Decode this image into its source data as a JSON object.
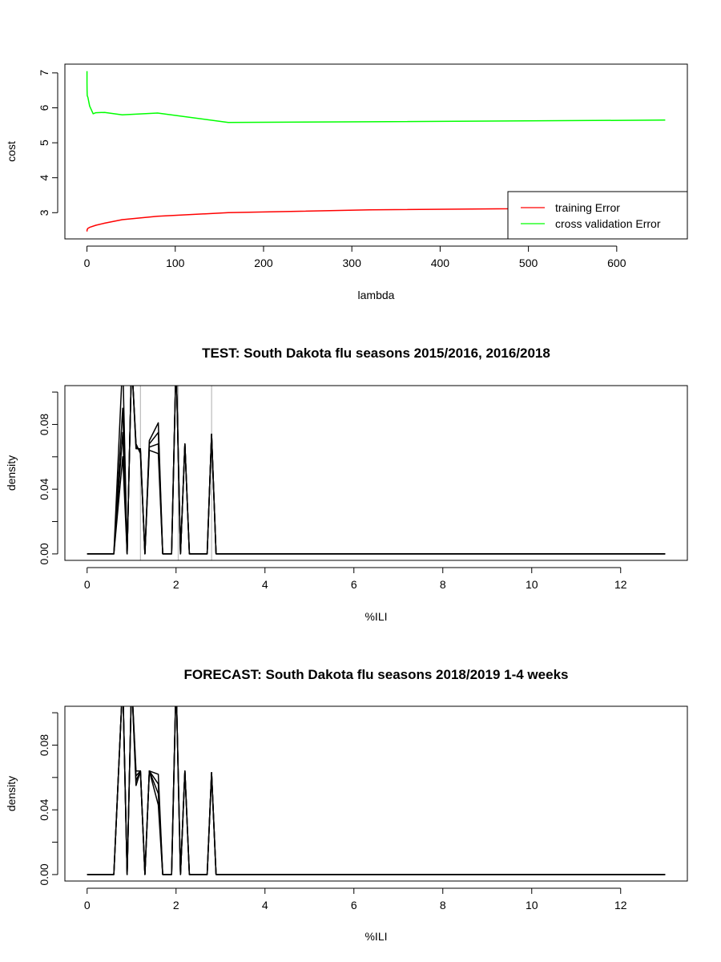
{
  "chart_data": [
    {
      "type": "line",
      "title": "",
      "xlabel": "lambda",
      "ylabel": "cost",
      "xlim": [
        -25,
        680
      ],
      "ylim": [
        2.25,
        7.25
      ],
      "x_ticks": [
        0,
        100,
        200,
        300,
        400,
        500,
        600
      ],
      "x_tick_labels": [
        "0",
        "100",
        "200",
        "300",
        "400",
        "500",
        "600"
      ],
      "y_ticks": [
        3,
        4,
        5,
        6,
        7
      ],
      "y_tick_labels": [
        "3",
        "4",
        "5",
        "6",
        "7"
      ],
      "legend": {
        "placement": "bottom-right"
      },
      "series": [
        {
          "name": "training Error",
          "color": "#ff0000",
          "x": [
            0,
            0.01,
            0.03,
            0.1,
            0.3,
            1,
            3,
            10,
            20,
            40,
            80,
            160,
            320,
            655
          ],
          "y": [
            2.46,
            2.47,
            2.48,
            2.5,
            2.52,
            2.55,
            2.58,
            2.64,
            2.7,
            2.8,
            2.9,
            3.0,
            3.08,
            3.15
          ]
        },
        {
          "name": "cross validation Error",
          "color": "#00ff00",
          "x": [
            0,
            0.01,
            0.03,
            0.1,
            0.3,
            1,
            3,
            7,
            10,
            20,
            40,
            80,
            160,
            320,
            655
          ],
          "y": [
            7.05,
            6.9,
            6.7,
            6.5,
            6.35,
            6.3,
            6.05,
            5.83,
            5.86,
            5.87,
            5.8,
            5.85,
            5.58,
            5.6,
            5.65
          ]
        }
      ]
    },
    {
      "type": "line",
      "title": "TEST: South Dakota  flu seasons 2015/2016, 2016/2018",
      "xlabel": "%ILI",
      "ylabel": "density",
      "xlim": [
        -0.5,
        13.5
      ],
      "ylim": [
        -0.004,
        0.104
      ],
      "x_ticks": [
        0,
        2,
        4,
        6,
        8,
        10,
        12
      ],
      "x_tick_labels": [
        "0",
        "2",
        "4",
        "6",
        "8",
        "10",
        "12"
      ],
      "y_ticks": [
        0.0,
        0.02,
        0.04,
        0.06,
        0.08,
        0.1
      ],
      "y_tick_labels": [
        "0.00",
        "",
        "0.04",
        "",
        "0.08",
        ""
      ],
      "vlines": [
        {
          "x": 1.2,
          "color": "#c0c0c0"
        },
        {
          "x": 2.05,
          "color": "#c0c0c0"
        },
        {
          "x": 2.8,
          "color": "#c0c0c0"
        }
      ],
      "series": [
        {
          "color": "#000000",
          "x": [
            0,
            0.6,
            0.8,
            0.9,
            1.0,
            1.1,
            1.2,
            1.3,
            1.4,
            1.6,
            1.7,
            1.9,
            2.0,
            2.1,
            2.2,
            2.3,
            2.7,
            2.8,
            2.9,
            13.0
          ],
          "y": [
            0,
            0,
            0.06,
            0,
            0.12,
            0.065,
            0.065,
            0,
            0.064,
            0.062,
            0,
            0,
            0.12,
            0,
            0.068,
            0,
            0,
            0.074,
            0,
            0
          ]
        },
        {
          "color": "#000000",
          "x": [
            0,
            0.6,
            0.8,
            0.9,
            1.0,
            1.1,
            1.2,
            1.3,
            1.4,
            1.6,
            1.7,
            1.9,
            2.0,
            2.1,
            2.2,
            2.3,
            2.7,
            2.8,
            2.9,
            13.0
          ],
          "y": [
            0,
            0,
            0.075,
            0,
            0.12,
            0.066,
            0.064,
            0,
            0.066,
            0.068,
            0,
            0,
            0.12,
            0,
            0.068,
            0,
            0,
            0.074,
            0,
            0
          ]
        },
        {
          "color": "#000000",
          "x": [
            0,
            0.6,
            0.8,
            0.9,
            1.0,
            1.1,
            1.2,
            1.3,
            1.4,
            1.6,
            1.7,
            1.9,
            2.0,
            2.1,
            2.2,
            2.3,
            2.7,
            2.8,
            2.9,
            13.0
          ],
          "y": [
            0,
            0,
            0.09,
            0,
            0.12,
            0.067,
            0.063,
            0,
            0.068,
            0.075,
            0,
            0,
            0.12,
            0,
            0.068,
            0,
            0,
            0.074,
            0,
            0
          ]
        },
        {
          "color": "#000000",
          "x": [
            0,
            0.6,
            0.8,
            0.9,
            1.0,
            1.1,
            1.2,
            1.3,
            1.4,
            1.6,
            1.7,
            1.9,
            2.0,
            2.1,
            2.2,
            2.3,
            2.7,
            2.8,
            2.9,
            13.0
          ],
          "y": [
            0,
            0,
            0.12,
            0,
            0.12,
            0.068,
            0.062,
            0,
            0.07,
            0.081,
            0,
            0,
            0.12,
            0,
            0.068,
            0,
            0,
            0.074,
            0,
            0
          ]
        }
      ]
    },
    {
      "type": "line",
      "title": "FORECAST: South Dakota flu seasons 2018/2019 1-4 weeks",
      "xlabel": "%ILI",
      "ylabel": "density",
      "xlim": [
        -0.5,
        13.5
      ],
      "ylim": [
        -0.004,
        0.104
      ],
      "x_ticks": [
        0,
        2,
        4,
        6,
        8,
        10,
        12
      ],
      "x_tick_labels": [
        "0",
        "2",
        "4",
        "6",
        "8",
        "10",
        "12"
      ],
      "y_ticks": [
        0.0,
        0.02,
        0.04,
        0.06,
        0.08,
        0.1
      ],
      "y_tick_labels": [
        "0.00",
        "",
        "0.04",
        "",
        "0.08",
        ""
      ],
      "vlines": [],
      "series": [
        {
          "color": "#000000",
          "x": [
            0,
            0.6,
            0.8,
            0.9,
            1.0,
            1.1,
            1.2,
            1.3,
            1.4,
            1.6,
            1.7,
            1.9,
            2.0,
            2.1,
            2.2,
            2.3,
            2.7,
            2.8,
            2.9,
            13.0
          ],
          "y": [
            0,
            0,
            0.12,
            0,
            0.12,
            0.055,
            0.064,
            0,
            0.064,
            0.043,
            0,
            0,
            0.12,
            0,
            0.064,
            0,
            0,
            0.063,
            0,
            0
          ]
        },
        {
          "color": "#000000",
          "x": [
            0,
            0.6,
            0.8,
            0.9,
            1.0,
            1.1,
            1.2,
            1.3,
            1.4,
            1.6,
            1.7,
            1.9,
            2.0,
            2.1,
            2.2,
            2.3,
            2.7,
            2.8,
            2.9,
            13.0
          ],
          "y": [
            0,
            0,
            0.12,
            0,
            0.12,
            0.058,
            0.064,
            0,
            0.064,
            0.05,
            0,
            0,
            0.12,
            0,
            0.064,
            0,
            0,
            0.063,
            0,
            0
          ]
        },
        {
          "color": "#000000",
          "x": [
            0,
            0.6,
            0.8,
            0.9,
            1.0,
            1.1,
            1.2,
            1.3,
            1.4,
            1.6,
            1.7,
            1.9,
            2.0,
            2.1,
            2.2,
            2.3,
            2.7,
            2.8,
            2.9,
            13.0
          ],
          "y": [
            0,
            0,
            0.12,
            0,
            0.12,
            0.061,
            0.064,
            0,
            0.064,
            0.056,
            0,
            0,
            0.12,
            0,
            0.064,
            0,
            0,
            0.063,
            0,
            0
          ]
        },
        {
          "color": "#000000",
          "x": [
            0,
            0.6,
            0.8,
            0.9,
            1.0,
            1.1,
            1.2,
            1.3,
            1.4,
            1.6,
            1.7,
            1.9,
            2.0,
            2.1,
            2.2,
            2.3,
            2.7,
            2.8,
            2.9,
            13.0
          ],
          "y": [
            0,
            0,
            0.12,
            0,
            0.12,
            0.064,
            0.064,
            0,
            0.064,
            0.062,
            0,
            0,
            0.12,
            0,
            0.064,
            0,
            0,
            0.063,
            0,
            0
          ]
        }
      ]
    }
  ]
}
